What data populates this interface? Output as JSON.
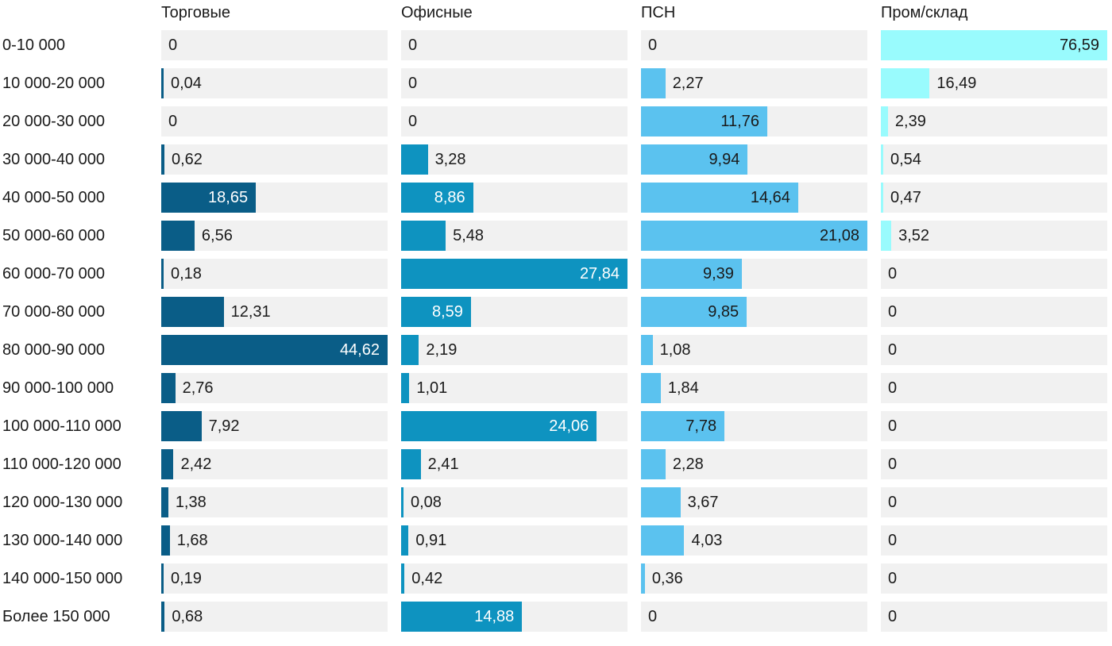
{
  "chart_data": {
    "type": "bar",
    "orientation": "horizontal",
    "title": "",
    "xlabel": "",
    "ylabel": "",
    "grid": false,
    "legend_position": "column-headers-top",
    "scale_note": "each column is scaled independently; the column maximum value fills the full track width",
    "track_color": "#f1f1f1",
    "text_color": "#1a1a1a",
    "categories": [
      "0-10 000",
      "10 000-20 000",
      "20 000-30 000",
      "30 000-40 000",
      "40 000-50 000",
      "50 000-60 000",
      "60 000-70 000",
      "70 000-80 000",
      "80 000-90 000",
      "90 000-100 000",
      "100 000-110 000",
      "110 000-120 000",
      "120 000-130 000",
      "130 000-140 000",
      "140 000-150 000",
      "Более 150 000"
    ],
    "series": [
      {
        "name": "Торговые",
        "color": "#0a5d87",
        "label_color_inside": "#ffffff",
        "max": 44.62,
        "values": [
          0,
          0.04,
          0,
          0.62,
          18.65,
          6.56,
          0.18,
          12.31,
          44.62,
          2.76,
          7.92,
          2.42,
          1.38,
          1.68,
          0.19,
          0.68
        ],
        "labels": [
          "0",
          "0,04",
          "0",
          "0,62",
          "18,65",
          "6,56",
          "0,18",
          "12,31",
          "44,62",
          "2,76",
          "7,92",
          "2,42",
          "1,38",
          "1,68",
          "0,19",
          "0,68"
        ]
      },
      {
        "name": "Офисные",
        "color": "#0e93c0",
        "label_color_inside": "#ffffff",
        "max": 27.84,
        "values": [
          0,
          0,
          0,
          3.28,
          8.86,
          5.48,
          27.84,
          8.59,
          2.19,
          1.01,
          24.06,
          2.41,
          0.08,
          0.91,
          0.42,
          14.88
        ],
        "labels": [
          "0",
          "0",
          "0",
          "3,28",
          "8,86",
          "5,48",
          "27,84",
          "8,59",
          "2,19",
          "1,01",
          "24,06",
          "2,41",
          "0,08",
          "0,91",
          "0,42",
          "14,88"
        ]
      },
      {
        "name": "ПСН",
        "color": "#5bc2ef",
        "label_color_inside": "#1a1a1a",
        "max": 21.08,
        "values": [
          0,
          2.27,
          11.76,
          9.94,
          14.64,
          21.08,
          9.39,
          9.85,
          1.08,
          1.84,
          7.78,
          2.28,
          3.67,
          4.03,
          0.36,
          0
        ],
        "labels": [
          "0",
          "2,27",
          "11,76",
          "9,94",
          "14,64",
          "21,08",
          "9,39",
          "9,85",
          "1,08",
          "1,84",
          "7,78",
          "2,28",
          "3,67",
          "4,03",
          "0,36",
          "0"
        ]
      },
      {
        "name": "Пром/склад",
        "color": "#99fbfd",
        "label_color_inside": "#1a1a1a",
        "max": 76.59,
        "values": [
          76.59,
          16.49,
          2.39,
          0.54,
          0.47,
          3.52,
          0,
          0,
          0,
          0,
          0,
          0,
          0,
          0,
          0,
          0
        ],
        "labels": [
          "76,59",
          "16,49",
          "2,39",
          "0,54",
          "0,47",
          "3,52",
          "0",
          "0",
          "0",
          "0",
          "0",
          "0",
          "0",
          "0",
          "0",
          "0"
        ]
      }
    ]
  }
}
